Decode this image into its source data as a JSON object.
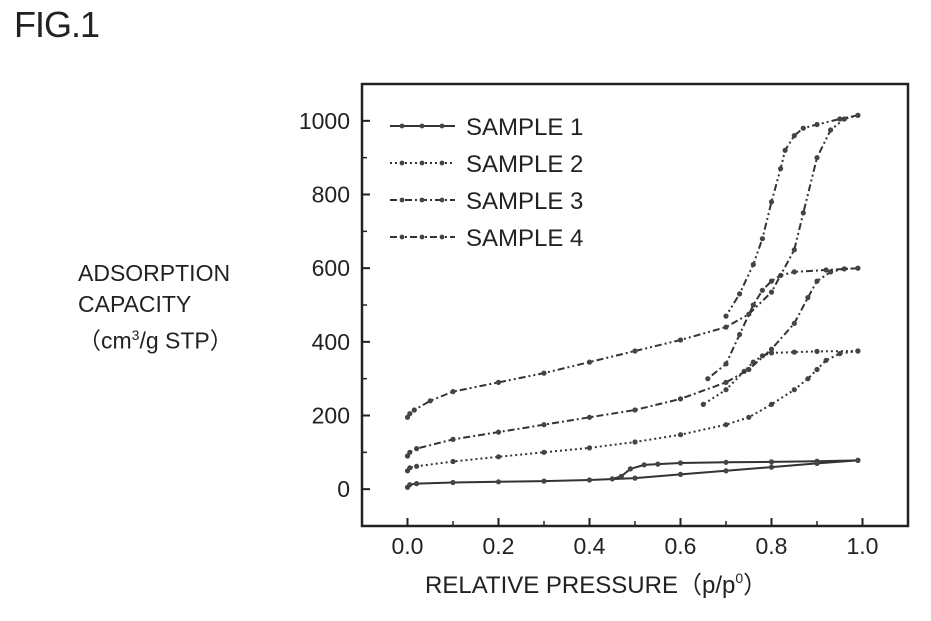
{
  "figure": {
    "label": "FIG.1"
  },
  "chart_data": {
    "type": "line",
    "title": "",
    "xlabel": "RELATIVE PRESSURE",
    "xlabel_unit_open": "（p/p",
    "xlabel_unit_sup": "0",
    "xlabel_unit_close": "）",
    "ylabel_lines": [
      "ADSORPTION",
      "CAPACITY"
    ],
    "ylabel_unit_open": "（cm",
    "ylabel_unit_sup": "3",
    "ylabel_unit_close": "/g STP）",
    "xlim": [
      -0.1,
      1.1
    ],
    "ylim": [
      -100,
      1100
    ],
    "x_ticks": [
      0.0,
      0.2,
      0.4,
      0.6,
      0.8,
      1.0
    ],
    "x_tick_labels": [
      "0.0",
      "0.2",
      "0.4",
      "0.6",
      "0.8",
      "1.0"
    ],
    "y_ticks": [
      0,
      200,
      400,
      600,
      800,
      1000
    ],
    "y_tick_labels": [
      "0",
      "200",
      "400",
      "600",
      "800",
      "1000"
    ],
    "legend": {
      "position": "top-left"
    },
    "series": [
      {
        "name": "SAMPLE 1",
        "style": "solid",
        "adsorption": [
          [
            0,
            5
          ],
          [
            0.005,
            12
          ],
          [
            0.02,
            15
          ],
          [
            0.1,
            18
          ],
          [
            0.2,
            20
          ],
          [
            0.3,
            22
          ],
          [
            0.4,
            25
          ],
          [
            0.5,
            30
          ],
          [
            0.6,
            40
          ],
          [
            0.7,
            50
          ],
          [
            0.8,
            60
          ],
          [
            0.9,
            70
          ],
          [
            0.99,
            78
          ]
        ],
        "desorption": [
          [
            0.99,
            78
          ],
          [
            0.9,
            76
          ],
          [
            0.8,
            74
          ],
          [
            0.7,
            73
          ],
          [
            0.6,
            71
          ],
          [
            0.55,
            68
          ],
          [
            0.52,
            66
          ],
          [
            0.49,
            55
          ],
          [
            0.47,
            35
          ],
          [
            0.45,
            28
          ]
        ]
      },
      {
        "name": "SAMPLE 2",
        "style": "dotted",
        "adsorption": [
          [
            0,
            50
          ],
          [
            0.005,
            58
          ],
          [
            0.02,
            62
          ],
          [
            0.1,
            75
          ],
          [
            0.2,
            88
          ],
          [
            0.3,
            100
          ],
          [
            0.4,
            112
          ],
          [
            0.5,
            128
          ],
          [
            0.6,
            148
          ],
          [
            0.7,
            175
          ],
          [
            0.75,
            195
          ],
          [
            0.8,
            230
          ],
          [
            0.85,
            270
          ],
          [
            0.88,
            300
          ],
          [
            0.9,
            325
          ],
          [
            0.92,
            350
          ],
          [
            0.95,
            368
          ],
          [
            0.99,
            375
          ]
        ],
        "desorption": [
          [
            0.99,
            375
          ],
          [
            0.9,
            374
          ],
          [
            0.85,
            372
          ],
          [
            0.8,
            370
          ],
          [
            0.78,
            362
          ],
          [
            0.76,
            345
          ],
          [
            0.74,
            320
          ],
          [
            0.7,
            270
          ],
          [
            0.65,
            230
          ]
        ]
      },
      {
        "name": "SAMPLE 3",
        "style": "dash-dot",
        "adsorption": [
          [
            0,
            90
          ],
          [
            0.005,
            100
          ],
          [
            0.02,
            110
          ],
          [
            0.1,
            135
          ],
          [
            0.2,
            155
          ],
          [
            0.3,
            175
          ],
          [
            0.4,
            195
          ],
          [
            0.5,
            215
          ],
          [
            0.6,
            245
          ],
          [
            0.7,
            290
          ],
          [
            0.75,
            325
          ],
          [
            0.8,
            380
          ],
          [
            0.85,
            450
          ],
          [
            0.88,
            520
          ],
          [
            0.9,
            565
          ],
          [
            0.93,
            590
          ],
          [
            0.96,
            598
          ],
          [
            0.99,
            600
          ]
        ],
        "desorption": [
          [
            0.99,
            600
          ],
          [
            0.92,
            595
          ],
          [
            0.85,
            590
          ],
          [
            0.82,
            580
          ],
          [
            0.8,
            565
          ],
          [
            0.78,
            540
          ],
          [
            0.76,
            500
          ],
          [
            0.73,
            420
          ],
          [
            0.7,
            340
          ],
          [
            0.66,
            300
          ]
        ]
      },
      {
        "name": "SAMPLE 4",
        "style": "dash-dot-dot",
        "adsorption": [
          [
            0,
            195
          ],
          [
            0.005,
            205
          ],
          [
            0.015,
            215
          ],
          [
            0.05,
            240
          ],
          [
            0.1,
            265
          ],
          [
            0.2,
            290
          ],
          [
            0.3,
            315
          ],
          [
            0.4,
            345
          ],
          [
            0.5,
            375
          ],
          [
            0.6,
            405
          ],
          [
            0.7,
            440
          ],
          [
            0.75,
            475
          ],
          [
            0.8,
            535
          ],
          [
            0.85,
            650
          ],
          [
            0.87,
            750
          ],
          [
            0.9,
            900
          ],
          [
            0.93,
            975
          ],
          [
            0.96,
            1005
          ],
          [
            0.99,
            1015
          ]
        ],
        "desorption": [
          [
            0.99,
            1015
          ],
          [
            0.95,
            1005
          ],
          [
            0.9,
            990
          ],
          [
            0.87,
            980
          ],
          [
            0.85,
            960
          ],
          [
            0.83,
            920
          ],
          [
            0.82,
            870
          ],
          [
            0.8,
            780
          ],
          [
            0.78,
            680
          ],
          [
            0.76,
            610
          ],
          [
            0.73,
            530
          ],
          [
            0.7,
            470
          ]
        ]
      }
    ]
  }
}
